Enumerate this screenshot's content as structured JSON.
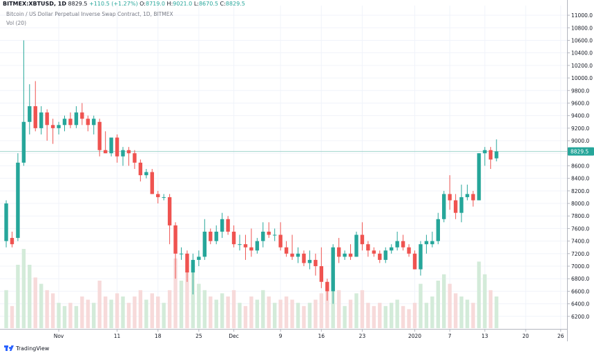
{
  "header": {
    "symbol": "BITMEX:XBTUSD, 1D",
    "last": "8829.5",
    "change": "+110.5 (+1.27%)",
    "o_label": "O:",
    "o_val": "8719.0",
    "h_label": "H:",
    "h_val": "9021.0",
    "l_label": "L:",
    "l_val": "8670.5",
    "c_label": "C:",
    "c_val": "8829.5",
    "title": "Bitcoin / US Dollar Perpetual Inverse Swap Contract, 1D, BITMEX",
    "volume_label": "Vol (20)"
  },
  "branding": {
    "name": "TradingView"
  },
  "colors": {
    "up": "#26a69a",
    "down": "#ef5350",
    "up_vol": "#d3ebd9",
    "down_vol": "#f7dada",
    "grid": "#f0f3fa",
    "price_line": "#9fd4cb"
  },
  "chart_data": {
    "type": "candlestick",
    "symbol": "BITMEX:XBTUSD",
    "interval": "1D",
    "last_price": 8829.5,
    "ylim": [
      6000,
      11100
    ],
    "y_ticks": [
      6200,
      6400,
      6600,
      6800,
      7000,
      7200,
      7400,
      7600,
      7800,
      8000,
      8200,
      8400,
      8600,
      8800,
      9000,
      9200,
      9400,
      9600,
      9800,
      10000,
      10200,
      10400,
      10600,
      10800,
      11000
    ],
    "x_ticks": [
      {
        "label": "Nov",
        "index": 9
      },
      {
        "label": "11",
        "index": 19
      },
      {
        "label": "18",
        "index": 26
      },
      {
        "label": "25",
        "index": 33
      },
      {
        "label": "Dec",
        "index": 39
      },
      {
        "label": "9",
        "index": 47
      },
      {
        "label": "16",
        "index": 54
      },
      {
        "label": "23",
        "index": 61
      },
      {
        "label": "2020",
        "index": 70
      },
      {
        "label": "7",
        "index": 76
      },
      {
        "label": "13",
        "index": 82
      },
      {
        "label": "20",
        "index": 89
      },
      {
        "label": "26",
        "index": 95
      }
    ],
    "total_slots": 97,
    "candles": [
      {
        "o": 7400,
        "h": 8050,
        "l": 7300,
        "c": 8000,
        "v": 12
      },
      {
        "o": 7450,
        "h": 7550,
        "l": 7300,
        "c": 7350,
        "v": 7
      },
      {
        "o": 7450,
        "h": 8800,
        "l": 7400,
        "c": 8650,
        "v": 20
      },
      {
        "o": 8650,
        "h": 10600,
        "l": 8600,
        "c": 9300,
        "v": 25
      },
      {
        "o": 9300,
        "h": 9900,
        "l": 9100,
        "c": 9550,
        "v": 20
      },
      {
        "o": 9550,
        "h": 9950,
        "l": 9150,
        "c": 9200,
        "v": 16
      },
      {
        "o": 9200,
        "h": 9550,
        "l": 9100,
        "c": 9450,
        "v": 14
      },
      {
        "o": 9450,
        "h": 9500,
        "l": 9000,
        "c": 9250,
        "v": 12
      },
      {
        "o": 9250,
        "h": 9350,
        "l": 8950,
        "c": 9200,
        "v": 11
      },
      {
        "o": 9200,
        "h": 9300,
        "l": 9100,
        "c": 9250,
        "v": 8
      },
      {
        "o": 9250,
        "h": 9400,
        "l": 9150,
        "c": 9350,
        "v": 7
      },
      {
        "o": 9350,
        "h": 9450,
        "l": 9200,
        "c": 9250,
        "v": 8
      },
      {
        "o": 9250,
        "h": 9550,
        "l": 9200,
        "c": 9450,
        "v": 7
      },
      {
        "o": 9450,
        "h": 9600,
        "l": 9250,
        "c": 9350,
        "v": 10
      },
      {
        "o": 9350,
        "h": 9400,
        "l": 9150,
        "c": 9250,
        "v": 9
      },
      {
        "o": 9250,
        "h": 9400,
        "l": 9100,
        "c": 9350,
        "v": 8
      },
      {
        "o": 9300,
        "h": 9350,
        "l": 8750,
        "c": 8850,
        "v": 15
      },
      {
        "o": 8850,
        "h": 9150,
        "l": 8800,
        "c": 8800,
        "v": 10
      },
      {
        "o": 8800,
        "h": 9050,
        "l": 8750,
        "c": 9050,
        "v": 9
      },
      {
        "o": 9050,
        "h": 9100,
        "l": 8650,
        "c": 8750,
        "v": 11
      },
      {
        "o": 8750,
        "h": 8900,
        "l": 8600,
        "c": 8850,
        "v": 10
      },
      {
        "o": 8850,
        "h": 8900,
        "l": 8600,
        "c": 8800,
        "v": 8
      },
      {
        "o": 8800,
        "h": 8850,
        "l": 8550,
        "c": 8650,
        "v": 10
      },
      {
        "o": 8650,
        "h": 8700,
        "l": 8350,
        "c": 8450,
        "v": 12
      },
      {
        "o": 8450,
        "h": 8550,
        "l": 8400,
        "c": 8500,
        "v": 9
      },
      {
        "o": 8500,
        "h": 8550,
        "l": 8150,
        "c": 8150,
        "v": 11
      },
      {
        "o": 8150,
        "h": 8200,
        "l": 8000,
        "c": 8100,
        "v": 10
      },
      {
        "o": 8100,
        "h": 8150,
        "l": 8050,
        "c": 8100,
        "v": 8
      },
      {
        "o": 8100,
        "h": 8150,
        "l": 7350,
        "c": 7650,
        "v": 12
      },
      {
        "o": 7650,
        "h": 7700,
        "l": 6800,
        "c": 7200,
        "v": 22
      },
      {
        "o": 7200,
        "h": 7300,
        "l": 7100,
        "c": 7200,
        "v": 15
      },
      {
        "o": 7200,
        "h": 7250,
        "l": 6750,
        "c": 6900,
        "v": 18
      },
      {
        "o": 6900,
        "h": 7200,
        "l": 6550,
        "c": 7100,
        "v": 20
      },
      {
        "o": 7100,
        "h": 7250,
        "l": 7000,
        "c": 7150,
        "v": 14
      },
      {
        "o": 7150,
        "h": 7750,
        "l": 7100,
        "c": 7550,
        "v": 12
      },
      {
        "o": 7550,
        "h": 7600,
        "l": 7350,
        "c": 7400,
        "v": 10
      },
      {
        "o": 7400,
        "h": 7650,
        "l": 7350,
        "c": 7550,
        "v": 9
      },
      {
        "o": 7550,
        "h": 7850,
        "l": 7450,
        "c": 7750,
        "v": 11
      },
      {
        "o": 7750,
        "h": 7800,
        "l": 7500,
        "c": 7550,
        "v": 10
      },
      {
        "o": 7550,
        "h": 7650,
        "l": 7300,
        "c": 7350,
        "v": 12
      },
      {
        "o": 7350,
        "h": 7500,
        "l": 7250,
        "c": 7350,
        "v": 8
      },
      {
        "o": 7350,
        "h": 7500,
        "l": 7100,
        "c": 7300,
        "v": 7
      },
      {
        "o": 7300,
        "h": 7600,
        "l": 7150,
        "c": 7250,
        "v": 10
      },
      {
        "o": 7250,
        "h": 7450,
        "l": 7200,
        "c": 7400,
        "v": 9
      },
      {
        "o": 7400,
        "h": 7700,
        "l": 7300,
        "c": 7550,
        "v": 12
      },
      {
        "o": 7550,
        "h": 7700,
        "l": 7450,
        "c": 7500,
        "v": 10
      },
      {
        "o": 7500,
        "h": 7600,
        "l": 7400,
        "c": 7500,
        "v": 8
      },
      {
        "o": 7500,
        "h": 7700,
        "l": 7250,
        "c": 7300,
        "v": 9
      },
      {
        "o": 7300,
        "h": 7400,
        "l": 7150,
        "c": 7200,
        "v": 10
      },
      {
        "o": 7200,
        "h": 7500,
        "l": 7100,
        "c": 7150,
        "v": 9
      },
      {
        "o": 7150,
        "h": 7300,
        "l": 7050,
        "c": 7200,
        "v": 8
      },
      {
        "o": 7200,
        "h": 7250,
        "l": 7000,
        "c": 7050,
        "v": 7
      },
      {
        "o": 7050,
        "h": 7250,
        "l": 6950,
        "c": 7100,
        "v": 8
      },
      {
        "o": 7100,
        "h": 7200,
        "l": 6850,
        "c": 7000,
        "v": 9
      },
      {
        "o": 7000,
        "h": 7300,
        "l": 6650,
        "c": 6750,
        "v": 11
      },
      {
        "o": 6750,
        "h": 6800,
        "l": 6450,
        "c": 6600,
        "v": 14
      },
      {
        "o": 6600,
        "h": 7350,
        "l": 6400,
        "c": 7300,
        "v": 17
      },
      {
        "o": 7300,
        "h": 7450,
        "l": 7050,
        "c": 7150,
        "v": 12
      },
      {
        "o": 7150,
        "h": 7250,
        "l": 7100,
        "c": 7200,
        "v": 7
      },
      {
        "o": 7200,
        "h": 7350,
        "l": 7100,
        "c": 7150,
        "v": 9
      },
      {
        "o": 7150,
        "h": 7550,
        "l": 7150,
        "c": 7500,
        "v": 11
      },
      {
        "o": 7500,
        "h": 7700,
        "l": 7250,
        "c": 7350,
        "v": 12
      },
      {
        "o": 7350,
        "h": 7400,
        "l": 7150,
        "c": 7250,
        "v": 8
      },
      {
        "o": 7250,
        "h": 7300,
        "l": 7150,
        "c": 7200,
        "v": 7
      },
      {
        "o": 7200,
        "h": 7250,
        "l": 7050,
        "c": 7100,
        "v": 8
      },
      {
        "o": 7100,
        "h": 7300,
        "l": 7050,
        "c": 7250,
        "v": 7
      },
      {
        "o": 7250,
        "h": 7350,
        "l": 7200,
        "c": 7300,
        "v": 8
      },
      {
        "o": 7300,
        "h": 7550,
        "l": 7250,
        "c": 7400,
        "v": 9
      },
      {
        "o": 7400,
        "h": 7500,
        "l": 7250,
        "c": 7300,
        "v": 7
      },
      {
        "o": 7300,
        "h": 7350,
        "l": 7150,
        "c": 7200,
        "v": 6
      },
      {
        "o": 7200,
        "h": 7250,
        "l": 6950,
        "c": 6950,
        "v": 8
      },
      {
        "o": 6950,
        "h": 7400,
        "l": 6850,
        "c": 7350,
        "v": 14
      },
      {
        "o": 7350,
        "h": 7500,
        "l": 7200,
        "c": 7400,
        "v": 8
      },
      {
        "o": 7350,
        "h": 7550,
        "l": 7300,
        "c": 7400,
        "v": 10
      },
      {
        "o": 7400,
        "h": 7850,
        "l": 7350,
        "c": 7750,
        "v": 15
      },
      {
        "o": 7750,
        "h": 8200,
        "l": 7700,
        "c": 8150,
        "v": 17
      },
      {
        "o": 8150,
        "h": 8450,
        "l": 7900,
        "c": 8050,
        "v": 14
      },
      {
        "o": 8050,
        "h": 8150,
        "l": 7750,
        "c": 7850,
        "v": 11
      },
      {
        "o": 7850,
        "h": 8300,
        "l": 7700,
        "c": 8100,
        "v": 10
      },
      {
        "o": 8100,
        "h": 8300,
        "l": 8050,
        "c": 8150,
        "v": 9
      },
      {
        "o": 8150,
        "h": 8200,
        "l": 7950,
        "c": 8050,
        "v": 8
      },
      {
        "o": 8050,
        "h": 8800,
        "l": 8050,
        "c": 8800,
        "v": 21
      },
      {
        "o": 8800,
        "h": 8900,
        "l": 8600,
        "c": 8850,
        "v": 17
      },
      {
        "o": 8850,
        "h": 8900,
        "l": 8550,
        "c": 8700,
        "v": 12
      },
      {
        "o": 8719,
        "h": 9021,
        "l": 8670.5,
        "c": 8829.5,
        "v": 10
      }
    ]
  }
}
